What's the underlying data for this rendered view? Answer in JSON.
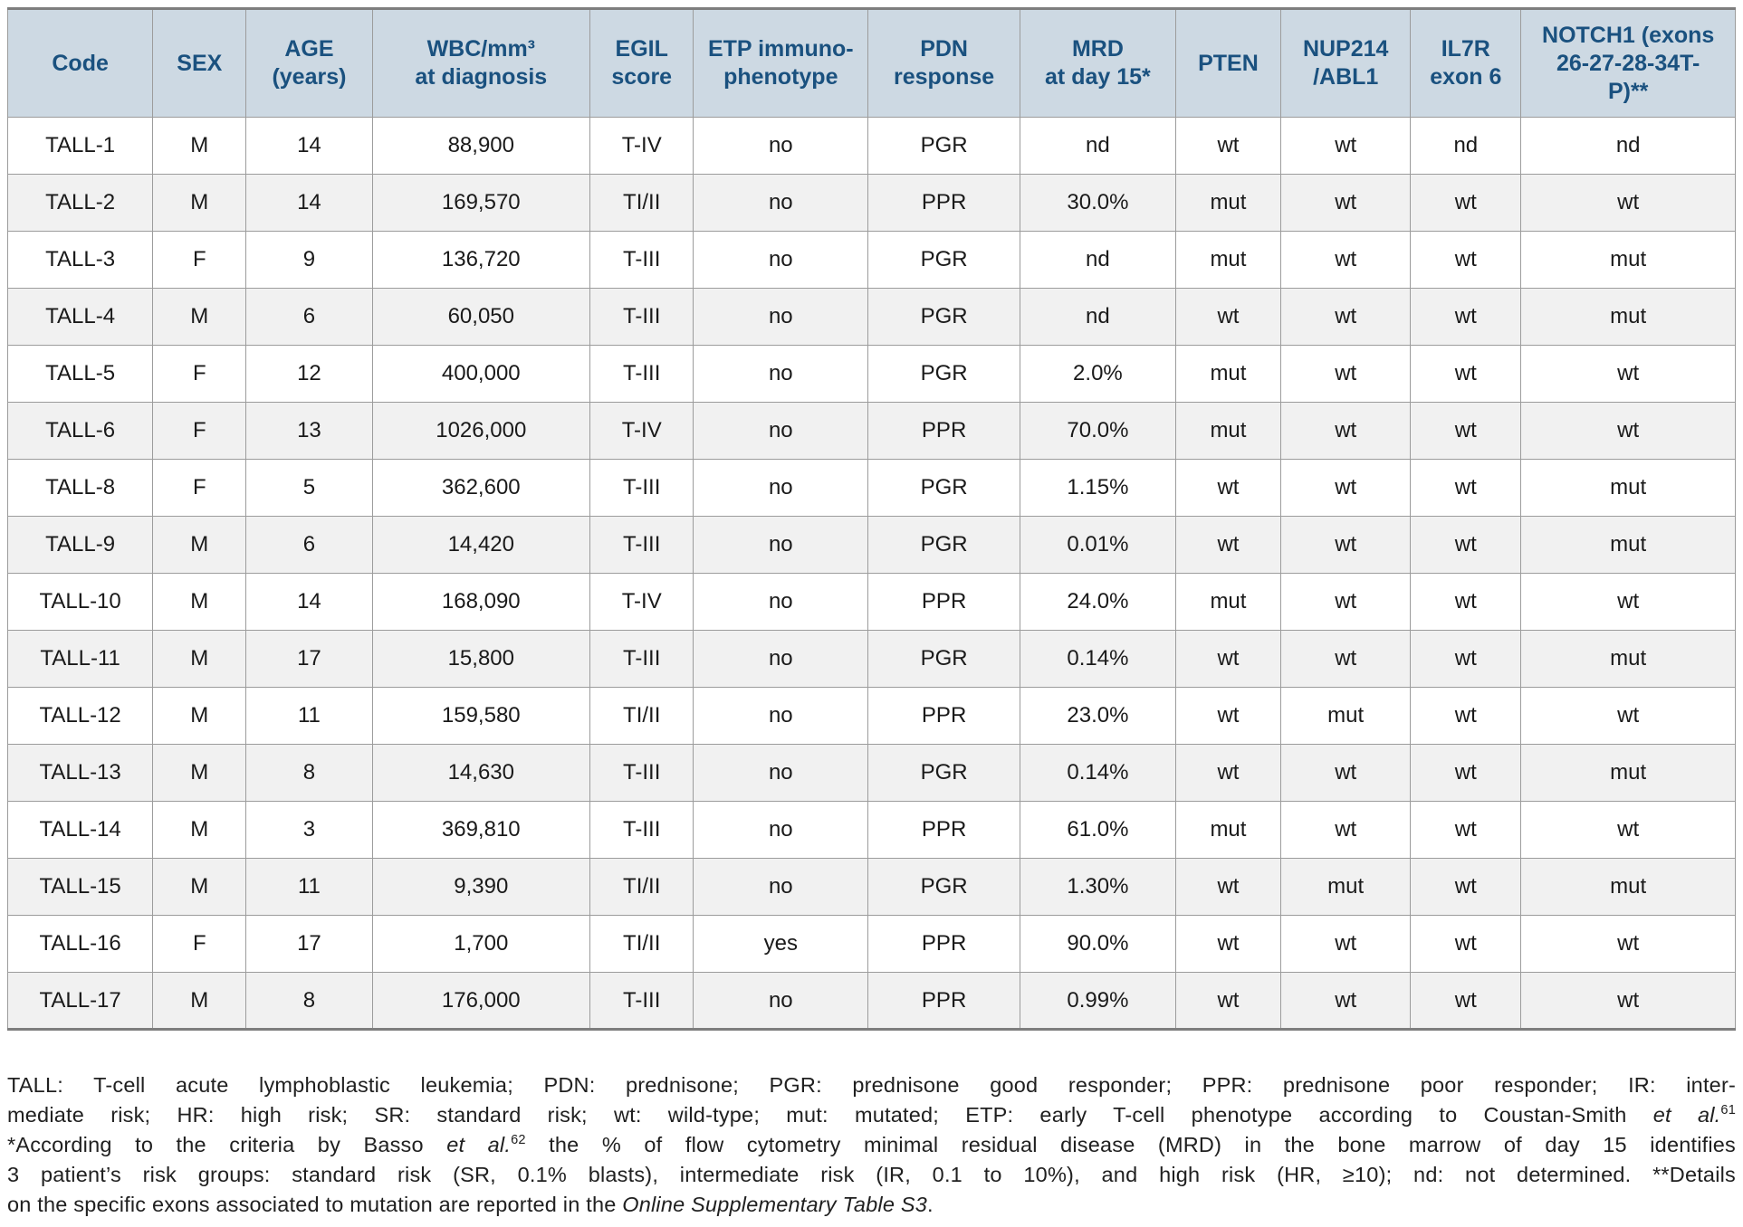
{
  "colors": {
    "header_bg": "#cdd9e3",
    "header_text": "#1a517f",
    "row_alt_bg": "#f1f1f1",
    "border": "#9c9c9c",
    "outer_border": "#7e7e7e",
    "text": "#1a1a1a"
  },
  "table": {
    "columns": [
      {
        "key": "code",
        "label": "Code"
      },
      {
        "key": "sex",
        "label": "SEX"
      },
      {
        "key": "age",
        "label": "AGE\n(years)"
      },
      {
        "key": "wbc",
        "label": "WBC/mm³\nat diagnosis"
      },
      {
        "key": "egil",
        "label": "EGIL\nscore"
      },
      {
        "key": "etp",
        "label": "ETP immuno-\nphenotype"
      },
      {
        "key": "pdn",
        "label": "PDN\nresponse"
      },
      {
        "key": "mrd",
        "label": "MRD\nat day 15*"
      },
      {
        "key": "pten",
        "label": "PTEN"
      },
      {
        "key": "nup214",
        "label": "NUP214\n/ABL1"
      },
      {
        "key": "il7r",
        "label": "IL7R\nexon 6"
      },
      {
        "key": "notch1",
        "label": "NOTCH1 (exons\n26-27-28-34T-\nP)**"
      }
    ],
    "rows": [
      {
        "code": "TALL-1",
        "sex": "M",
        "age": "14",
        "wbc": "88,900",
        "egil": "T-IV",
        "etp": "no",
        "pdn": "PGR",
        "mrd": "nd",
        "pten": "wt",
        "nup214": "wt",
        "il7r": "nd",
        "notch1": "nd"
      },
      {
        "code": "TALL-2",
        "sex": "M",
        "age": "14",
        "wbc": "169,570",
        "egil": "TI/II",
        "etp": "no",
        "pdn": "PPR",
        "mrd": "30.0%",
        "pten": "mut",
        "nup214": "wt",
        "il7r": "wt",
        "notch1": "wt"
      },
      {
        "code": "TALL-3",
        "sex": "F",
        "age": "9",
        "wbc": "136,720",
        "egil": "T-III",
        "etp": "no",
        "pdn": "PGR",
        "mrd": "nd",
        "pten": "mut",
        "nup214": "wt",
        "il7r": "wt",
        "notch1": "mut"
      },
      {
        "code": "TALL-4",
        "sex": "M",
        "age": "6",
        "wbc": "60,050",
        "egil": "T-III",
        "etp": "no",
        "pdn": "PGR",
        "mrd": "nd",
        "pten": "wt",
        "nup214": "wt",
        "il7r": "wt",
        "notch1": "mut"
      },
      {
        "code": "TALL-5",
        "sex": "F",
        "age": "12",
        "wbc": "400,000",
        "egil": "T-III",
        "etp": "no",
        "pdn": "PGR",
        "mrd": "2.0%",
        "pten": "mut",
        "nup214": "wt",
        "il7r": "wt",
        "notch1": "wt"
      },
      {
        "code": "TALL-6",
        "sex": "F",
        "age": "13",
        "wbc": "1026,000",
        "egil": "T-IV",
        "etp": "no",
        "pdn": "PPR",
        "mrd": "70.0%",
        "pten": "mut",
        "nup214": "wt",
        "il7r": "wt",
        "notch1": "wt"
      },
      {
        "code": "TALL-8",
        "sex": "F",
        "age": "5",
        "wbc": "362,600",
        "egil": "T-III",
        "etp": "no",
        "pdn": "PGR",
        "mrd": "1.15%",
        "pten": "wt",
        "nup214": "wt",
        "il7r": "wt",
        "notch1": "mut"
      },
      {
        "code": "TALL-9",
        "sex": "M",
        "age": "6",
        "wbc": "14,420",
        "egil": "T-III",
        "etp": "no",
        "pdn": "PGR",
        "mrd": "0.01%",
        "pten": "wt",
        "nup214": "wt",
        "il7r": "wt",
        "notch1": "mut"
      },
      {
        "code": "TALL-10",
        "sex": "M",
        "age": "14",
        "wbc": "168,090",
        "egil": "T-IV",
        "etp": "no",
        "pdn": "PPR",
        "mrd": "24.0%",
        "pten": "mut",
        "nup214": "wt",
        "il7r": "wt",
        "notch1": "wt"
      },
      {
        "code": "TALL-11",
        "sex": "M",
        "age": "17",
        "wbc": "15,800",
        "egil": "T-III",
        "etp": "no",
        "pdn": "PGR",
        "mrd": "0.14%",
        "pten": "wt",
        "nup214": "wt",
        "il7r": "wt",
        "notch1": "mut"
      },
      {
        "code": "TALL-12",
        "sex": "M",
        "age": "11",
        "wbc": "159,580",
        "egil": "TI/II",
        "etp": "no",
        "pdn": "PPR",
        "mrd": "23.0%",
        "pten": "wt",
        "nup214": "mut",
        "il7r": "wt",
        "notch1": "wt"
      },
      {
        "code": "TALL-13",
        "sex": "M",
        "age": "8",
        "wbc": "14,630",
        "egil": "T-III",
        "etp": "no",
        "pdn": "PGR",
        "mrd": "0.14%",
        "pten": "wt",
        "nup214": "wt",
        "il7r": "wt",
        "notch1": "mut"
      },
      {
        "code": "TALL-14",
        "sex": "M",
        "age": "3",
        "wbc": "369,810",
        "egil": "T-III",
        "etp": "no",
        "pdn": "PPR",
        "mrd": "61.0%",
        "pten": "mut",
        "nup214": "wt",
        "il7r": "wt",
        "notch1": "wt"
      },
      {
        "code": "TALL-15",
        "sex": "M",
        "age": "11",
        "wbc": "9,390",
        "egil": "TI/II",
        "etp": "no",
        "pdn": "PGR",
        "mrd": "1.30%",
        "pten": "wt",
        "nup214": "mut",
        "il7r": "wt",
        "notch1": "mut"
      },
      {
        "code": "TALL-16",
        "sex": "F",
        "age": "17",
        "wbc": "1,700",
        "egil": "TI/II",
        "etp": "yes",
        "pdn": "PPR",
        "mrd": "90.0%",
        "pten": "wt",
        "nup214": "wt",
        "il7r": "wt",
        "notch1": "wt"
      },
      {
        "code": "TALL-17",
        "sex": "M",
        "age": "8",
        "wbc": "176,000",
        "egil": "T-III",
        "etp": "no",
        "pdn": "PPR",
        "mrd": "0.99%",
        "pten": "wt",
        "nup214": "wt",
        "il7r": "wt",
        "notch1": "wt"
      }
    ]
  },
  "footnote": {
    "lines": [
      [
        {
          "text": "TALL: T-cell acute lymphoblastic leukemia; PDN: prednisone; PGR: prednisone good responder; PPR: prednisone poor responder; IR: inter-"
        }
      ],
      [
        {
          "text": "mediate risk; HR: high risk; SR: standard risk; wt: wild-type; mut: mutated; ETP: early T-cell phenotype according to Coustan-Smith "
        },
        {
          "text": "et al.",
          "italic": true
        },
        {
          "text": "61",
          "sup": true
        }
      ],
      [
        {
          "text": "*According to the criteria by Basso "
        },
        {
          "text": "et al.",
          "italic": true
        },
        {
          "text": "62",
          "sup": true
        },
        {
          "text": " the % of flow cytometry minimal residual disease (MRD) in the bone marrow of day 15 identifies"
        }
      ],
      [
        {
          "text": "3 patient’s risk groups: standard risk (SR, 0.1% blasts), intermediate risk (IR, 0.1 to 10%), and high risk (HR, ≥10); nd: not determined. **Details"
        }
      ],
      [
        {
          "text": "on the specific exons associated to mutation are reported in the "
        },
        {
          "text": "Online Supplementary Table S3",
          "italic": true
        },
        {
          "text": "."
        }
      ]
    ]
  }
}
